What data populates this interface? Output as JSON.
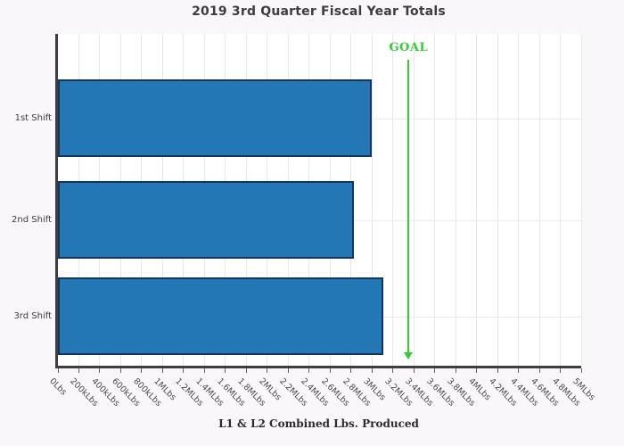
{
  "title": "2019 3rd Quarter Fiscal Year Totals",
  "chart_data": {
    "type": "bar",
    "orientation": "horizontal",
    "title": "2019 3rd Quarter Fiscal Year Totals",
    "xlabel": "L1 & L2 Combined Lbs. Produced",
    "ylabel": "",
    "categories": [
      "1st Shift",
      "2nd Shift",
      "3rd Shift"
    ],
    "values": [
      3000000,
      2830000,
      3110000
    ],
    "xlim": [
      0,
      5000000
    ],
    "xtick_step": 200000,
    "xtick_labels": [
      "0Lbs",
      "200kLbs",
      "400kLbs",
      "600kLbs",
      "800kLbs",
      "1MLbs",
      "1.2MLbs",
      "1.4MLbs",
      "1.6MLbs",
      "1.8MLbs",
      "2MLbs",
      "2.2MLbs",
      "2.4MLbs",
      "2.6MLbs",
      "2.8MLbs",
      "3MLbs",
      "3.2MLbs",
      "3.4MLbs",
      "3.6MLbs",
      "3.8MLbs",
      "4MLbs",
      "4.2MLbs",
      "4.4MLbs",
      "4.6MLbs",
      "4.8MLbs",
      "5MLbs"
    ],
    "grid": true,
    "legend": null,
    "goal": {
      "label": "GOAL",
      "value": 3350000
    },
    "colors": {
      "bar_fill": "#2277b4",
      "bar_edge": "#12365f",
      "goal_green": "#33cc33",
      "background": "#faf7fa",
      "plot_background": "#ffffff",
      "gridline": "#e9e7ea",
      "spine": "#3e3e3e"
    }
  }
}
